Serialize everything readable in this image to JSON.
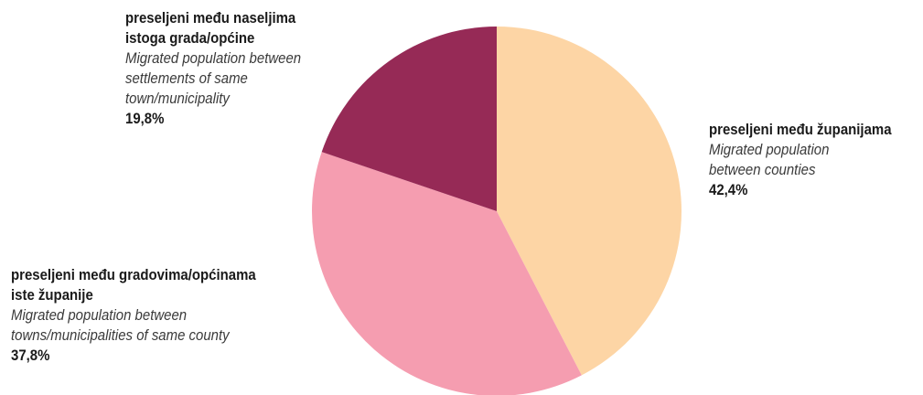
{
  "chart_data": {
    "type": "pie",
    "slices": [
      {
        "value": 42.4,
        "value_label": "42,4%",
        "label_hr": [
          "preseljeni među županijama"
        ],
        "label_en": [
          "Migrated population",
          "between counties"
        ],
        "color": "#FDD5A5"
      },
      {
        "value": 37.8,
        "value_label": "37,8%",
        "label_hr": [
          "preseljeni među gradovima/općinama",
          "iste županije"
        ],
        "label_en": [
          "Migrated population between",
          "towns/municipalities of same county"
        ],
        "color": "#F59DB0"
      },
      {
        "value": 19.8,
        "value_label": "19,8%",
        "label_hr": [
          "preseljeni među naseljima",
          "istoga grada/općine"
        ],
        "label_en": [
          "Migrated population between",
          "settlements of same",
          "town/municipality"
        ],
        "color": "#962A56"
      }
    ]
  }
}
